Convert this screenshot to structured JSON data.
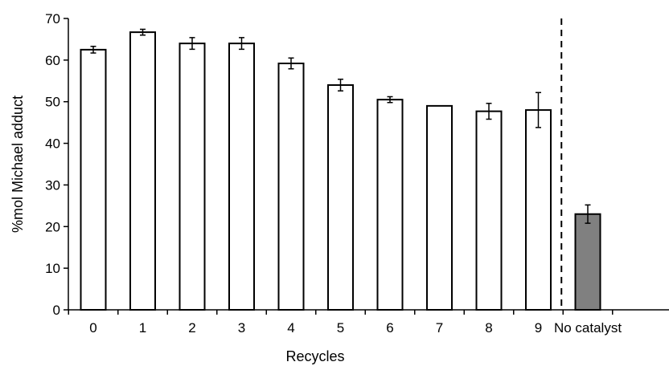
{
  "chart_data": {
    "type": "bar",
    "title": "",
    "xlabel": "Recycles",
    "ylabel": "%mol Michael adduct",
    "ylim": [
      0,
      70
    ],
    "yticks": [
      0,
      10,
      20,
      30,
      40,
      50,
      60,
      70
    ],
    "grid": false,
    "categories": [
      "0",
      "1",
      "2",
      "3",
      "4",
      "5",
      "6",
      "7",
      "8",
      "9",
      "No catalyst"
    ],
    "values": [
      62.5,
      66.7,
      64.0,
      64.0,
      59.2,
      54.0,
      50.5,
      49.0,
      47.7,
      48.0,
      23.0
    ],
    "errors": [
      0.8,
      0.7,
      1.4,
      1.4,
      1.3,
      1.4,
      0.7,
      0.0,
      1.9,
      4.2,
      2.2
    ],
    "bar_colors": [
      "#ffffff",
      "#ffffff",
      "#ffffff",
      "#ffffff",
      "#ffffff",
      "#ffffff",
      "#ffffff",
      "#ffffff",
      "#ffffff",
      "#ffffff",
      "#808080"
    ],
    "separator": {
      "style": "dashed",
      "between": [
        "9",
        "No catalyst"
      ]
    }
  }
}
